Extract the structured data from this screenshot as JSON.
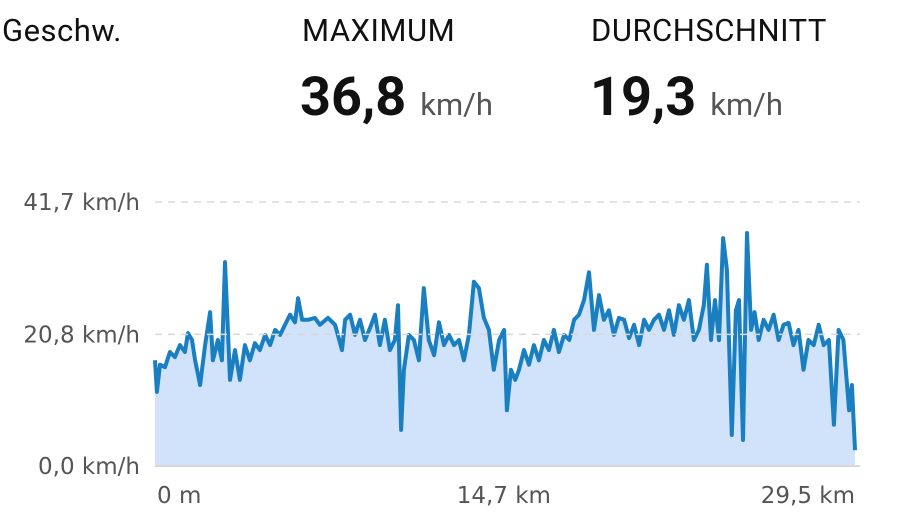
{
  "header": {
    "title": "Geschw.",
    "stats": [
      {
        "label": "MAXIMUM",
        "value": "36,8",
        "unit": "km/h"
      },
      {
        "label": "DURCHSCHNITT",
        "value": "19,3",
        "unit": "km/h"
      }
    ]
  },
  "chart_data": {
    "type": "area",
    "x": [
      0,
      0.08,
      0.21,
      0.42,
      0.63,
      0.84,
      1.05,
      1.26,
      1.39,
      1.56,
      1.69,
      1.9,
      2.11,
      2.32,
      2.44,
      2.65,
      2.82,
      2.95,
      3.16,
      3.37,
      3.58,
      3.79,
      4.0,
      4.21,
      4.42,
      4.64,
      4.85,
      5.06,
      5.27,
      5.48,
      5.69,
      5.9,
      6.03,
      6.2,
      6.45,
      6.74,
      6.95,
      7.29,
      7.59,
      7.88,
      8.01,
      8.22,
      8.43,
      8.64,
      8.85,
      9.06,
      9.27,
      9.48,
      9.69,
      9.9,
      10.11,
      10.24,
      10.37,
      10.49,
      10.7,
      10.91,
      11.12,
      11.33,
      11.54,
      11.76,
      11.97,
      12.18,
      12.39,
      12.6,
      12.81,
      13.02,
      13.23,
      13.44,
      13.65,
      13.86,
      14.07,
      14.28,
      14.5,
      14.71,
      14.83,
      15.0,
      15.18,
      15.34,
      15.55,
      15.76,
      15.97,
      16.18,
      16.39,
      16.6,
      16.81,
      17.02,
      17.24,
      17.46,
      17.66,
      17.87,
      18.08,
      18.29,
      18.5,
      18.71,
      18.92,
      19.13,
      19.34,
      19.55,
      19.77,
      19.98,
      20.19,
      20.4,
      20.61,
      20.82,
      21.03,
      21.24,
      21.45,
      21.66,
      21.87,
      22.08,
      22.29,
      22.5,
      22.71,
      22.92,
      23.13,
      23.26,
      23.43,
      23.6,
      23.77,
      23.94,
      24.1,
      24.31,
      24.48,
      24.61,
      24.78,
      24.95,
      25.12,
      25.27,
      25.44,
      25.65,
      25.86,
      26.07,
      26.28,
      26.49,
      26.7,
      26.91,
      27.12,
      27.33,
      27.54,
      27.76,
      27.97,
      28.18,
      28.4,
      28.61,
      28.81,
      29.01,
      29.25,
      29.37,
      29.5
    ],
    "series": [
      {
        "color": "#1a7fc1",
        "fill": "#d0e3fa",
        "values": [
          16.7,
          11.7,
          16.0,
          15.6,
          18.0,
          17.2,
          19.1,
          18.0,
          21.0,
          19.9,
          16.7,
          12.8,
          19.1,
          24.3,
          16.7,
          19.9,
          16.7,
          32.2,
          13.6,
          18.3,
          13.6,
          19.1,
          16.7,
          19.4,
          18.3,
          20.7,
          19.1,
          21.5,
          20.7,
          22.3,
          23.9,
          22.7,
          26.5,
          23.1,
          23.1,
          23.4,
          22.3,
          23.4,
          22.3,
          18.3,
          23.1,
          23.9,
          20.7,
          23.1,
          19.9,
          21.8,
          23.9,
          19.1,
          23.1,
          18.3,
          19.9,
          25.4,
          5.7,
          15.2,
          20.7,
          19.9,
          16.7,
          28.1,
          19.9,
          17.5,
          22.7,
          19.1,
          20.7,
          19.1,
          19.9,
          16.7,
          20.7,
          29.1,
          28.1,
          23.4,
          21.5,
          15.2,
          19.9,
          21.5,
          8.8,
          15.2,
          13.6,
          15.2,
          18.3,
          16.0,
          19.1,
          16.7,
          19.9,
          18.3,
          21.5,
          18.0,
          20.7,
          19.9,
          23.1,
          23.9,
          26.2,
          30.6,
          21.5,
          27.0,
          23.1,
          24.6,
          20.7,
          23.4,
          23.1,
          20.2,
          22.3,
          19.1,
          23.1,
          21.5,
          23.1,
          23.9,
          21.5,
          24.6,
          20.7,
          25.4,
          23.1,
          26.2,
          19.9,
          21.5,
          25.4,
          31.8,
          19.9,
          26.2,
          19.9,
          36.0,
          31.0,
          4.9,
          24.6,
          26.2,
          4.1,
          36.8,
          21.5,
          24.3,
          19.9,
          23.1,
          21.5,
          23.9,
          19.9,
          22.3,
          22.6,
          19.1,
          21.5,
          15.2,
          19.9,
          19.1,
          22.3,
          19.1,
          19.9,
          6.5,
          21.5,
          19.9,
          8.8,
          12.8,
          2.5
        ]
      }
    ],
    "xlim": [
      0,
      29.5
    ],
    "xticks": [
      {
        "value": 0,
        "label": "0 m"
      },
      {
        "value": 14.7,
        "label": "14,7 km"
      },
      {
        "value": 29.5,
        "label": "29,5 km"
      }
    ],
    "ylim": [
      0,
      41.7
    ],
    "yticks": [
      {
        "value": 0,
        "label": "0,0 km/h"
      },
      {
        "value": 20.8,
        "label": "20,8 km/h"
      },
      {
        "value": 41.7,
        "label": "41,7 km/h"
      }
    ],
    "grid": true
  }
}
